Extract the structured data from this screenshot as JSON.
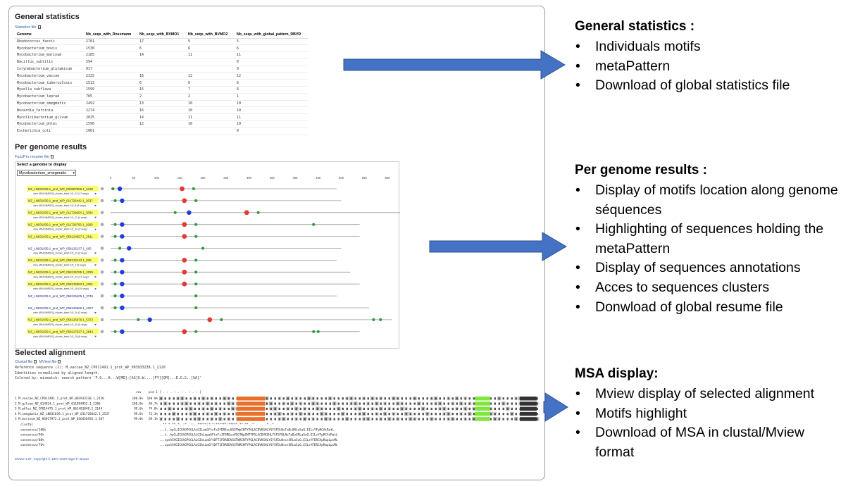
{
  "general": {
    "title": "General statistics",
    "file_link": "Statistics file",
    "columns": [
      "Genome",
      "Nb_seqs_with_Rossmann",
      "Nb_seqs_with_BVMO1",
      "Nb_seqs_with_BVMO2",
      "Nb_seqs_with_global_pattern_RBVR"
    ],
    "rows": [
      [
        "Rhodococcus_fascii",
        "2701",
        "17",
        "9",
        "5"
      ],
      [
        "Mycobacterium_bovis",
        "1530",
        "6",
        "6",
        "6"
      ],
      [
        "Mycobacterium_marinum",
        "2185",
        "14",
        "11",
        "11"
      ],
      [
        "Bacillus_subtilis",
        "594",
        "",
        "",
        "0"
      ],
      [
        "Corynebacterium_glutamicum",
        "917",
        "",
        "",
        "0"
      ],
      [
        "Mycobacterium_vaccae",
        "2325",
        "16",
        "12",
        "12"
      ],
      [
        "Mycobacterium_tuberculosis",
        "1513",
        "6",
        "6",
        "6"
      ],
      [
        "Mycella_subflava",
        "1599",
        "15",
        "7",
        "6"
      ],
      [
        "Mycobacterium_leprae",
        "765",
        "2",
        "2",
        "1"
      ],
      [
        "Mycobacterium_smegmatis",
        "2492",
        "13",
        "10",
        "10"
      ],
      [
        "Nocardia_farcinia",
        "2274",
        "16",
        "10",
        "10"
      ],
      [
        "Mycolicibacterium_gilvum",
        "2025",
        "14",
        "11",
        "11"
      ],
      [
        "Mycobacterium_phlei",
        "1590",
        "12",
        "10",
        "10"
      ],
      [
        "Escherichia_coli",
        "1001",
        "",
        "",
        "0"
      ]
    ]
  },
  "per_genome": {
    "title": "Per genome results",
    "file_link": "FuzzPro resume file",
    "select_label": "Select a genome to display",
    "selected_genome": "Mycobacterium_smegmatis",
    "axis_ticks": [
      "0",
      "50",
      "100",
      "150",
      "200",
      "250",
      "300",
      "350",
      "400",
      "450",
      "500",
      "550",
      "600"
    ],
    "sequences": [
      {
        "label": "NZ_LN831039.1_prot_WP_003897855.1_6155",
        "sub": "view MSA MMSEQ_cluster_ident-0.5_22 (17 seqs)",
        "highlight": true,
        "length": 490,
        "motifs": [
          {
            "pos": 5,
            "type": "green"
          },
          {
            "pos": 20,
            "type": "blue"
          },
          {
            "pos": 155,
            "type": "red"
          },
          {
            "pos": 180,
            "type": "green"
          }
        ]
      },
      {
        "label": "NZ_LN831039.1_prot_WP_011726442.1_2637",
        "sub": "view MSA MMSEQ_cluster_ident-0.5_8 (8 seqs)",
        "highlight": true,
        "length": 500,
        "motifs": [
          {
            "pos": 10,
            "type": "green"
          },
          {
            "pos": 25,
            "type": "blue"
          },
          {
            "pos": 160,
            "type": "red"
          },
          {
            "pos": 185,
            "type": "green"
          }
        ]
      },
      {
        "label": "NZ_LN831039.1_prot_WP_011728654.1_2834",
        "sub": "view MSA MMSEQ_cluster_ident-0.5_11 (4 seqs)",
        "highlight": true,
        "length": 640,
        "motifs": [
          {
            "pos": 140,
            "type": "green"
          },
          {
            "pos": 170,
            "type": "blue"
          },
          {
            "pos": 295,
            "type": "red"
          },
          {
            "pos": 320,
            "type": "green"
          }
        ]
      },
      {
        "label": "NZ_LN831039.1_prot_WP_011728756.1_2960",
        "sub": "view MSA MMSEQ_cluster_ident-0.5_34 (2 seqs)",
        "highlight": true,
        "length": 540,
        "motifs": [
          {
            "pos": 10,
            "type": "green"
          },
          {
            "pos": 25,
            "type": "blue"
          },
          {
            "pos": 160,
            "type": "red"
          },
          {
            "pos": 185,
            "type": "green"
          },
          {
            "pos": 440,
            "type": "green"
          }
        ]
      },
      {
        "label": "NZ_LN831039.1_prot_WP_058124957.1_2811",
        "sub": "",
        "highlight": true,
        "length": 540,
        "motifs": [
          {
            "pos": 10,
            "type": "green"
          },
          {
            "pos": 25,
            "type": "blue"
          },
          {
            "pos": 160,
            "type": "red"
          },
          {
            "pos": 185,
            "type": "green"
          }
        ]
      },
      {
        "label": "NZ_LN831039.1_prot_WP_058125137.1_605",
        "sub": "view MSA MMSEQ_cluster_ident-0.5_12 (2 seqs)",
        "highlight": false,
        "length": 500,
        "motifs": [
          {
            "pos": 20,
            "type": "green"
          },
          {
            "pos": 40,
            "type": "blue"
          },
          {
            "pos": 200,
            "type": "green"
          }
        ]
      },
      {
        "label": "NZ_LN831039.1_prot_WP_058125243.1_826",
        "sub": "view MSA MMSEQ_cluster_ident-0.5_2 (9 seqs)",
        "highlight": true,
        "length": 490,
        "motifs": [
          {
            "pos": 10,
            "type": "green"
          },
          {
            "pos": 25,
            "type": "blue"
          },
          {
            "pos": 160,
            "type": "red"
          },
          {
            "pos": 185,
            "type": "green"
          }
        ]
      },
      {
        "label": "NZ_LN831039.1_prot_WP_058125785.1_2035",
        "sub": "view MSA MMSEQ_cluster_ident-0.5_22 (17 seqs)",
        "highlight": true,
        "length": 520,
        "motifs": [
          {
            "pos": 10,
            "type": "green"
          },
          {
            "pos": 25,
            "type": "blue"
          },
          {
            "pos": 160,
            "type": "red"
          },
          {
            "pos": 185,
            "type": "green"
          }
        ]
      },
      {
        "label": "NZ_LN831039.1_prot_WP_058125863.1_2291",
        "sub": "view MSA MMSEQ_cluster_ident-0.5_18 (10 seqs)",
        "highlight": true,
        "length": 540,
        "motifs": [
          {
            "pos": 10,
            "type": "green"
          },
          {
            "pos": 25,
            "type": "blue"
          },
          {
            "pos": 160,
            "type": "red"
          },
          {
            "pos": 185,
            "type": "green"
          }
        ]
      },
      {
        "label": "NZ_LN831039.1_prot_WP_058126405.1_3745",
        "sub": "",
        "highlight": false,
        "length": 490,
        "motifs": [
          {
            "pos": 10,
            "type": "green"
          },
          {
            "pos": 25,
            "type": "blue"
          },
          {
            "pos": 185,
            "type": "green"
          }
        ]
      },
      {
        "label": "NZ_LN831039.1_prot_WP_058126565.1_4257",
        "sub": "view MSA MMSEQ_cluster_ident-0.5_34 (3 seqs)",
        "highlight": false,
        "length": 560,
        "motifs": [
          {
            "pos": 10,
            "type": "green"
          },
          {
            "pos": 25,
            "type": "blue"
          },
          {
            "pos": 185,
            "type": "green"
          }
        ]
      },
      {
        "label": "NZ_LN831039.1_prot_WP_058126979.1_5372",
        "sub": "view MSA MMSEQ_cluster_ident-0.5_20 (5 seqs)",
        "highlight": true,
        "length": 610,
        "motifs": [
          {
            "pos": 60,
            "type": "green"
          },
          {
            "pos": 85,
            "type": "blue"
          },
          {
            "pos": 215,
            "type": "red"
          },
          {
            "pos": 240,
            "type": "green"
          },
          {
            "pos": 570,
            "type": "green"
          },
          {
            "pos": 585,
            "type": "green"
          }
        ]
      },
      {
        "label": "NZ_LN831039.1_prot_WP_058127627.1_2844",
        "sub": "view MSA MMSEQ_cluster_ident-0.5_25 (6 seqs)",
        "highlight": true,
        "length": 540,
        "motifs": [
          {
            "pos": 10,
            "type": "green"
          },
          {
            "pos": 25,
            "type": "blue"
          },
          {
            "pos": 160,
            "type": "red"
          },
          {
            "pos": 185,
            "type": "green"
          },
          {
            "pos": 440,
            "type": "green"
          },
          {
            "pos": 450,
            "type": "green"
          }
        ]
      }
    ]
  },
  "alignment": {
    "title": "Selected alignment",
    "clustal_link": "Clustal file",
    "mview_link": "MView file",
    "ref_line": "Reference sequence (1): M.vaccae_NZ_CP011491.1_prot_WP_003933238.1_2120",
    "ident_line": "Identities normalised by aligned length.",
    "color_line": "Colored by: mismatch; search pattern 'F.G...H...W[MD]:[AG]G.W....[FY][QM]...D.G.G..[GA]'",
    "header": {
      "cov": "cov",
      "pid": "pid",
      "ruler": "1 [    .    :    .    :    .    :    .    :    .    :    ]"
    },
    "rows": [
      {
        "id": "1 M.vaccae_NZ_CP011491.1_prot_WP_003933238.1_2120",
        "cov": "100.0%",
        "pid": "100.0%"
      },
      {
        "id": "2 M.gilvum_NZ_014814.1_prot_WP_011894952.1_2386",
        "cov": "100.0%",
        "pid": "84.7%"
      },
      {
        "id": "5 M.phlei_NZ_CP014475.1_prot_WP_061481848.1_2144",
        "cov": "99.6%",
        "pid": "74.0%"
      },
      {
        "id": "4 M.smegmatis_NZ_LN831039.1_prot_WP_011728442.1_2537",
        "cov": "99.6%",
        "pid": "72.3%"
      },
      {
        "id": "3 M.marinum_NZ_HG917972.2_prot_WP_036456935.1_367",
        "cov": "99.0%",
        "pid": "69.1%"
      }
    ],
    "consensus": [
      {
        "id": "clustal",
        "seq": "                     .  **  * **.*:  :* .::..*****:*:*:******:*****.**:**..*  . .. .* .*"
      },
      {
        "id": "consensus/100%",
        "seq": "...t..hpIuIIGAGPGGLAiGILaaGFtsFsIFDREsuVGGTWpINTYPGLACDVKSHLYSFSFDLNsTaDuSRLaSuQ.EILsYFpRCAtRatL"
      },
      {
        "id": "consensus/90%",
        "seq": "...t..hpIuIIGAGPGGLALGIhLapaGFtsFsIFDREsuVGGTWpINTYPGLACDVKSHLYSFSFDLNsTaDuSRLaSuQ.EILsYFpRCAtRatL"
      },
      {
        "id": "consensus/80%",
        "seq": "...spshSVGIIGAGPGGLALGIhLaaGFtDFTIFDREDVGGTWRINTYPGLACDVKSHLYSYSFDLNscsSRLaSuQ.EILsYFERCApRapLpsML"
      },
      {
        "id": "consensus/70%",
        "seq": "...spshSVGIIGAGPGGLALGIhLaaGFtDFTIFDREDVGGTWRINTYPGLACDVKSHLYSYSFDLNscsSRLaSuQ.EILsYFERCApRapLpsML"
      }
    ],
    "footer": "MView 1.67, Copyright © 1997-2020 Nigel P. Brown"
  },
  "annotations": [
    {
      "title": "General statistics :",
      "items": [
        "Individuals motifs",
        "metaPattern",
        "Download of global statistics file"
      ]
    },
    {
      "title": "Per genome results :",
      "items": [
        "Display of motifs location along genome séquences",
        "Highlighting of sequences holding the metaPattern",
        "Display of sequences annotations",
        "Acces to sequences clusters",
        "Donwload of global resume file"
      ]
    },
    {
      "title": "MSA display:",
      "items": [
        "Mview display of selected alignment",
        "Motifs highlight",
        "Download of MSA in clustal/Mview format"
      ]
    }
  ],
  "colors": {
    "arrow": "#4472c4",
    "highlight": "#ffff66",
    "motif_red": "#e53935",
    "motif_blue": "#1e3ce0",
    "motif_green": "#2e9a3a",
    "motif_orange": "#e8702a",
    "motif_lime": "#7ee63c"
  }
}
